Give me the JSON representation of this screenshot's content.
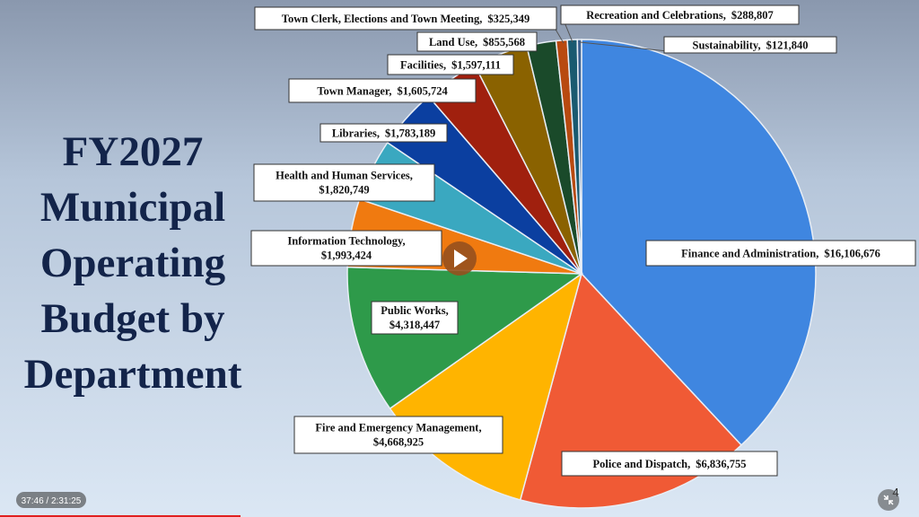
{
  "chart_data": {
    "type": "pie",
    "title": [
      "FY2027",
      "Municipal",
      "Operating",
      "Budget by",
      "Department"
    ],
    "label_separator": ",",
    "categories": [
      "Finance and Administration",
      "Police and Dispatch",
      "Fire and Emergency Management",
      "Public Works",
      "Information Technology",
      "Health and Human Services",
      "Libraries",
      "Town Manager",
      "Facilities",
      "Land Use",
      "Town Clerk, Elections and Town Meeting",
      "Recreation and Celebrations",
      "Sustainability"
    ],
    "values": [
      16106676,
      6836755,
      4668925,
      4318447,
      1993424,
      1820749,
      1783189,
      1605724,
      1597111,
      855568,
      325349,
      288807,
      121840
    ],
    "value_labels": [
      "$16,106,676",
      "$6,836,755",
      "$4,668,925",
      "$4,318,447",
      "$1,993,424",
      "$1,820,749",
      "$1,783,189",
      "$1,605,724",
      "$1,597,111",
      "$855,568",
      "$325,349",
      "$288,807",
      "$121,840"
    ],
    "colors": [
      "#3f86e0",
      "#f05a35",
      "#ffb400",
      "#2e9a4a",
      "#f07a10",
      "#3aa8c0",
      "#0b3fa0",
      "#a0200e",
      "#8a6200",
      "#1a4a2a",
      "#b84a10",
      "#1a5a70",
      "#3a6090"
    ]
  },
  "player": {
    "time": "37:46 / 2:31:25",
    "page": "4"
  }
}
